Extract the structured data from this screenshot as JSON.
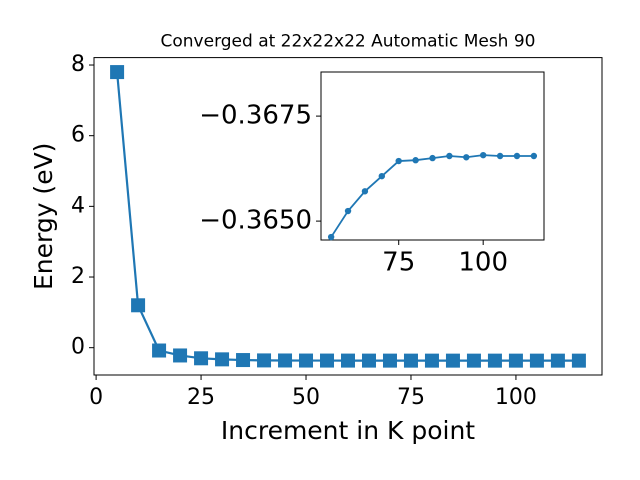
{
  "chart_data": [
    {
      "type": "line",
      "title": "Converged at 22x22x22 Automatic Mesh 90",
      "x_label": "Increment in K point",
      "y_label": "Energy (eV)",
      "x": [
        5,
        10,
        15,
        20,
        25,
        30,
        35,
        40,
        45,
        50,
        55,
        60,
        65,
        70,
        75,
        80,
        85,
        90,
        95,
        100,
        105,
        110,
        115
      ],
      "series": [
        {
          "color": "#1f77b4",
          "marker": "square",
          "values": [
            7.8,
            1.2,
            -0.08,
            -0.22,
            -0.3,
            -0.33,
            -0.35,
            -0.36,
            -0.362,
            -0.364,
            -0.36462,
            -0.36524,
            -0.36571,
            -0.36607,
            -0.36643,
            -0.36645,
            -0.3665,
            -0.36655,
            -0.36652,
            -0.36657,
            -0.36655,
            -0.36655,
            -0.36655
          ]
        }
      ],
      "xlim": [
        -0.5,
        120.5
      ],
      "ylim": [
        -0.773,
        8.21
      ],
      "xticks": [
        0,
        25,
        50,
        75,
        100
      ],
      "yticks": [
        0,
        2,
        4,
        6,
        8
      ]
    },
    {
      "type": "line",
      "x": [
        55,
        60,
        65,
        70,
        75,
        80,
        85,
        90,
        95,
        100,
        105,
        110,
        115
      ],
      "series": [
        {
          "color": "#1f77b4",
          "marker": "circle",
          "values": [
            -0.36462,
            -0.36524,
            -0.36571,
            -0.36607,
            -0.36643,
            -0.36645,
            -0.3665,
            -0.36655,
            -0.36652,
            -0.36657,
            -0.36655,
            -0.36655,
            -0.36655
          ]
        }
      ],
      "xlim": [
        52,
        118
      ],
      "ylim": [
        -0.36455,
        -0.36855
      ],
      "xticks": [
        75,
        100
      ],
      "yticks": [
        {
          "value": -0.365,
          "label": "−0.3650"
        },
        {
          "value": -0.3675,
          "label": "−0.3675"
        }
      ]
    }
  ]
}
